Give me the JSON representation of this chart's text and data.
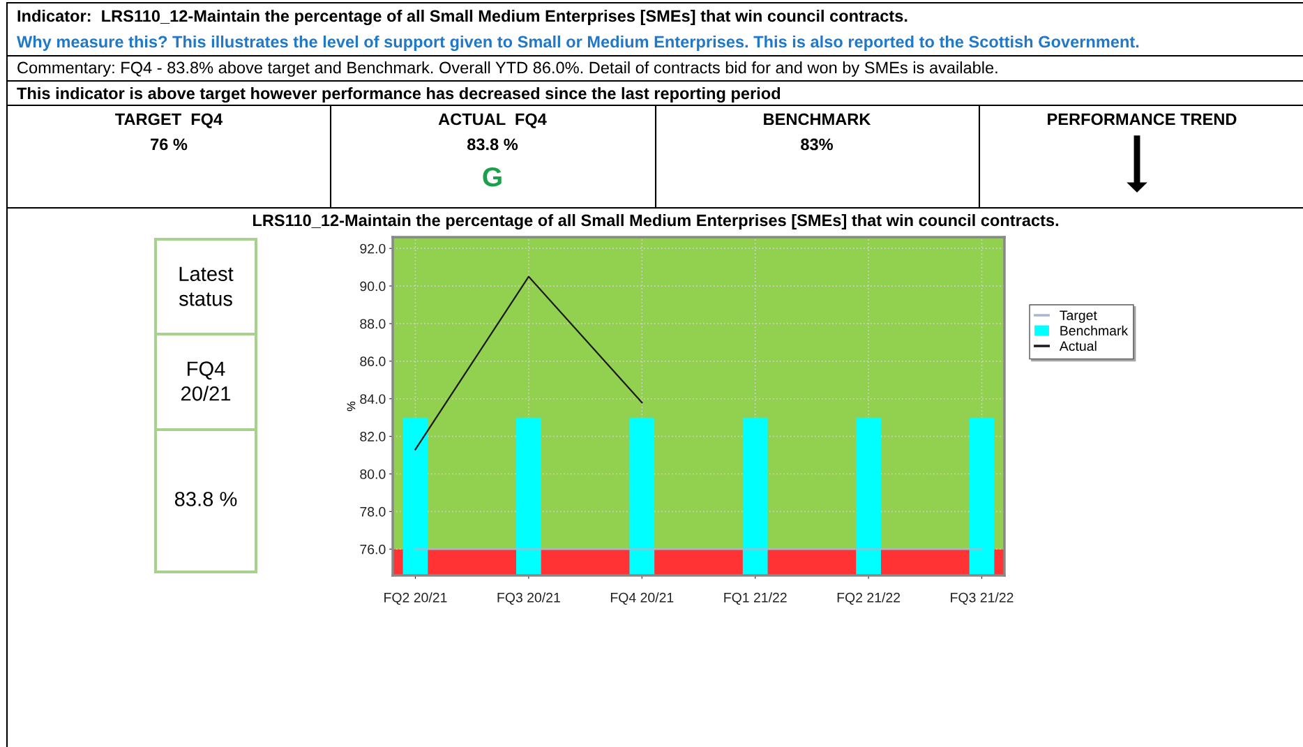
{
  "chart_data": {
    "type": "bar",
    "title": "LRS110_12-Maintain the percentage of all Small Medium Enterprises [SMEs] that win council contracts.",
    "ylabel": "%",
    "categories": [
      "FQ2 20/21",
      "FQ3 20/21",
      "FQ4 20/21",
      "FQ1 21/22",
      "FQ2 21/22",
      "FQ3 21/22"
    ],
    "series": [
      {
        "name": "Target",
        "type": "line",
        "color": "#a4b8d0",
        "values": [
          76,
          76,
          76,
          76,
          76,
          76
        ]
      },
      {
        "name": "Benchmark",
        "color": "#00ffff",
        "values": [
          83,
          83,
          83,
          83,
          83,
          83
        ]
      },
      {
        "name": "Actual",
        "type": "line",
        "color": "#1a1a1a",
        "values": [
          81.3,
          90.5,
          83.8,
          null,
          null,
          null
        ]
      }
    ],
    "ylim": [
      74.6,
      92.6
    ],
    "yticks": [
      {
        "value": 76,
        "label": "76.0"
      },
      {
        "value": 78,
        "label": "78.0"
      },
      {
        "value": 80,
        "label": "80.0"
      },
      {
        "value": 82,
        "label": "82.0"
      },
      {
        "value": 84,
        "label": "84.0"
      },
      {
        "value": 86,
        "label": "86.0"
      },
      {
        "value": 88,
        "label": "88.0"
      },
      {
        "value": 90,
        "label": "90.0"
      },
      {
        "value": 92,
        "label": "92.0"
      }
    ],
    "bands": [
      {
        "axis": "y",
        "from": 74.6,
        "to": 76,
        "color": "#ff3333"
      },
      {
        "axis": "y",
        "from": 76,
        "to": 92.6,
        "color": "#92d050"
      }
    ],
    "grid": true,
    "legend": "right",
    "annotations": [
      "Indicator:  LRS110_12-Maintain the percentage of all Small Medium Enterprises [SMEs] that win council contracts.",
      "Why measure this? This illustrates the level of support given to Small or Medium Enterprises. This is also reported to the Scottish Government.",
      "Commentary: FQ4 - 83.8% above target and Benchmark. Overall YTD 86.0%. Detail of contracts bid for and won by SMEs is available.",
      "This indicator is above target however performance has decreased since the last reporting period",
      "TARGET  FQ4",
      "76 %",
      "ACTUAL  FQ4",
      "83.8 %",
      "G",
      "BENCHMARK",
      "83%",
      "PERFORMANCE TREND",
      "Latest status",
      "FQ4 20/21",
      "83.8 %"
    ]
  }
}
